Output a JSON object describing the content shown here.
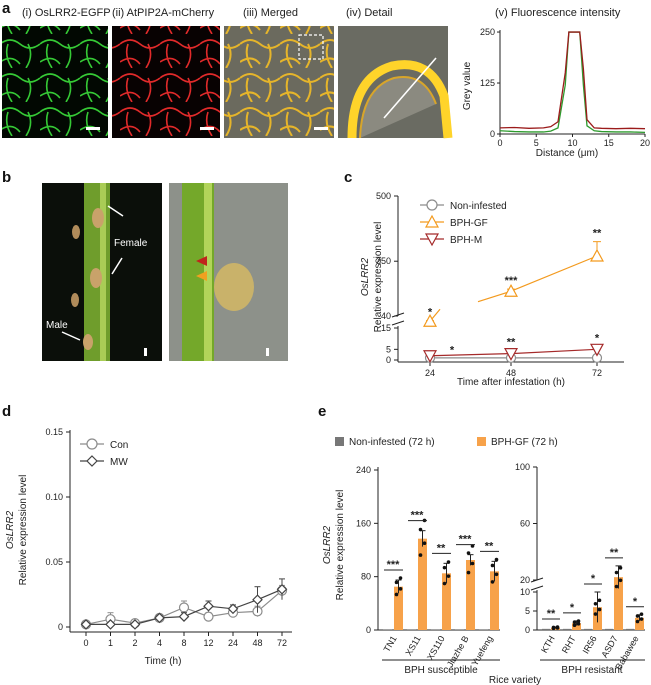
{
  "panels": {
    "a": {
      "letter": "a",
      "labels": [
        "(i) OsLRR2-EGFP",
        "(ii) AtPIP2A-mCherry",
        "(iii) Merged",
        "(iv) Detail"
      ],
      "intensity": {
        "title": "(v) Fluorescence intensity",
        "xlabel": "Distance (μm)",
        "ylabel": "Grey value",
        "xticks": [
          "0",
          "5",
          "10",
          "15",
          "20"
        ],
        "yticks": [
          "0",
          "125",
          "250"
        ],
        "series_colors": [
          "#2e9b2e",
          "#9b1b1b"
        ]
      }
    },
    "b": {
      "letter": "b",
      "female": "Female",
      "male": "Male"
    },
    "c": {
      "letter": "c",
      "xlabel": "Time after infestation (h)",
      "ylabel_main": "Relative expression level",
      "ylabel_gene": "OsLRR2",
      "xticks": [
        "24",
        "48",
        "72"
      ],
      "yticks_upper": [
        "40",
        "250",
        "500"
      ],
      "yticks_lower": [
        "0",
        "5",
        "15"
      ],
      "legend": [
        "Non-infested",
        "BPH-GF",
        "BPH-M"
      ],
      "colors": [
        "#8c8c8c",
        "#f39a1e",
        "#a52a2a"
      ],
      "sig_gf": [
        "*",
        "***",
        "**"
      ],
      "sig_m": [
        "*",
        "**",
        "*"
      ]
    },
    "d": {
      "letter": "d",
      "xlabel": "Time (h)",
      "ylabel_main": "Relative expression level",
      "ylabel_gene": "OsLRR2",
      "xticks": [
        "0",
        "1",
        "2",
        "4",
        "8",
        "12",
        "24",
        "48",
        "72"
      ],
      "yticks": [
        "0",
        "0.05",
        "0.10",
        "0.15"
      ],
      "legend": [
        "Con",
        "MW"
      ]
    },
    "e": {
      "letter": "e",
      "legend": [
        "Non-infested (72 h)",
        "BPH-GF (72 h)"
      ],
      "colors": [
        "#777777",
        "#f7a24a"
      ],
      "ylabel_main": "Relative expression level",
      "ylabel_gene": "OsLRR2",
      "xlabel": "Rice variety",
      "left_yticks": [
        "0",
        "80",
        "160",
        "240"
      ],
      "right_yticks_lower": [
        "0",
        "5",
        "10"
      ],
      "right_yticks_upper": [
        "20",
        "60",
        "100"
      ],
      "group_left": "BPH susceptible",
      "group_right": "BPH resistant",
      "varieties_left": [
        "TN1",
        "XS11",
        "XS110",
        "Jiazhe B",
        "Yuefeng"
      ],
      "varieties_right": [
        "KTH",
        "RHT",
        "IR56",
        "ASD7",
        "Babawee"
      ],
      "sig_left": [
        "***",
        "***",
        "**",
        "***",
        "**"
      ],
      "sig_right": [
        "**",
        "*",
        "*",
        "**",
        "*"
      ]
    }
  },
  "chart_data": [
    {
      "type": "line",
      "panel": "a(v)",
      "title": "(v) Fluorescence intensity",
      "xlabel": "Distance (μm)",
      "ylabel": "Grey value",
      "xlim": [
        0,
        20
      ],
      "ylim": [
        0,
        255
      ],
      "x": [
        0,
        2,
        4,
        6,
        7,
        8,
        9,
        9.5,
        10,
        11,
        11.5,
        12,
        13,
        14,
        16,
        18,
        20
      ],
      "series": [
        {
          "values": [
            8,
            6,
            5,
            5,
            7,
            15,
            120,
            250,
            250,
            250,
            120,
            20,
            8,
            6,
            5,
            5,
            4
          ]
        },
        {
          "values": [
            15,
            16,
            14,
            15,
            18,
            30,
            150,
            250,
            250,
            250,
            160,
            35,
            15,
            14,
            13,
            14,
            13
          ]
        }
      ]
    },
    {
      "type": "line",
      "panel": "c",
      "xlabel": "Time after infestation (h)",
      "ylabel": "OsLRR2 Relative expression level",
      "categories": [
        "24",
        "48",
        "72"
      ],
      "series": [
        {
          "name": "Non-infested",
          "values": [
            1,
            1,
            1
          ]
        },
        {
          "name": "BPH-GF",
          "values": [
            20,
            135,
            270
          ],
          "errors": [
            2,
            8,
            55
          ]
        },
        {
          "name": "BPH-M",
          "values": [
            2,
            3,
            5
          ],
          "errors": [
            0.3,
            0.4,
            0.5
          ]
        }
      ]
    },
    {
      "type": "line",
      "panel": "d",
      "xlabel": "Time (h)",
      "ylabel": "OsLRR2 Relative expression level",
      "categories": [
        "0",
        "1",
        "2",
        "4",
        "8",
        "12",
        "24",
        "48",
        "72"
      ],
      "ylim": [
        0,
        0.15
      ],
      "series": [
        {
          "name": "Con",
          "values": [
            0.002,
            0.006,
            0.003,
            0.007,
            0.015,
            0.008,
            0.011,
            0.012,
            0.028
          ],
          "errors": [
            0.001,
            0.005,
            0.001,
            0.002,
            0.005,
            0.003,
            0.003,
            0.004,
            0.004
          ]
        },
        {
          "name": "MW",
          "values": [
            0.002,
            0.002,
            0.002,
            0.007,
            0.008,
            0.016,
            0.014,
            0.021,
            0.029
          ],
          "errors": [
            0.001,
            0.001,
            0.001,
            0.002,
            0.003,
            0.004,
            0.003,
            0.01,
            0.008
          ]
        }
      ]
    },
    {
      "type": "bar",
      "panel": "e-left",
      "categories": [
        "TN1",
        "XS11",
        "XS110",
        "Jiazhe B",
        "Yuefeng"
      ],
      "ylim": [
        0,
        240
      ],
      "series": [
        {
          "name": "Non-infested (72 h)",
          "values": [
            1,
            1,
            1,
            1,
            1
          ]
        },
        {
          "name": "BPH-GF (72 h)",
          "values": [
            65,
            137,
            85,
            105,
            88
          ],
          "errors": [
            10,
            12,
            15,
            8,
            15
          ]
        }
      ]
    },
    {
      "type": "bar",
      "panel": "e-right",
      "categories": [
        "KTH",
        "RHT",
        "IR56",
        "ASD7",
        "Babawee"
      ],
      "series": [
        {
          "name": "Non-infested (72 h)",
          "values": [
            0.3,
            0.3,
            0.3,
            0.3,
            0.3
          ]
        },
        {
          "name": "BPH-GF (72 h)",
          "values": [
            0.6,
            1.8,
            6,
            22,
            3.2
          ],
          "errors": [
            0.2,
            0.6,
            4,
            8,
            0.8
          ]
        }
      ]
    }
  ]
}
